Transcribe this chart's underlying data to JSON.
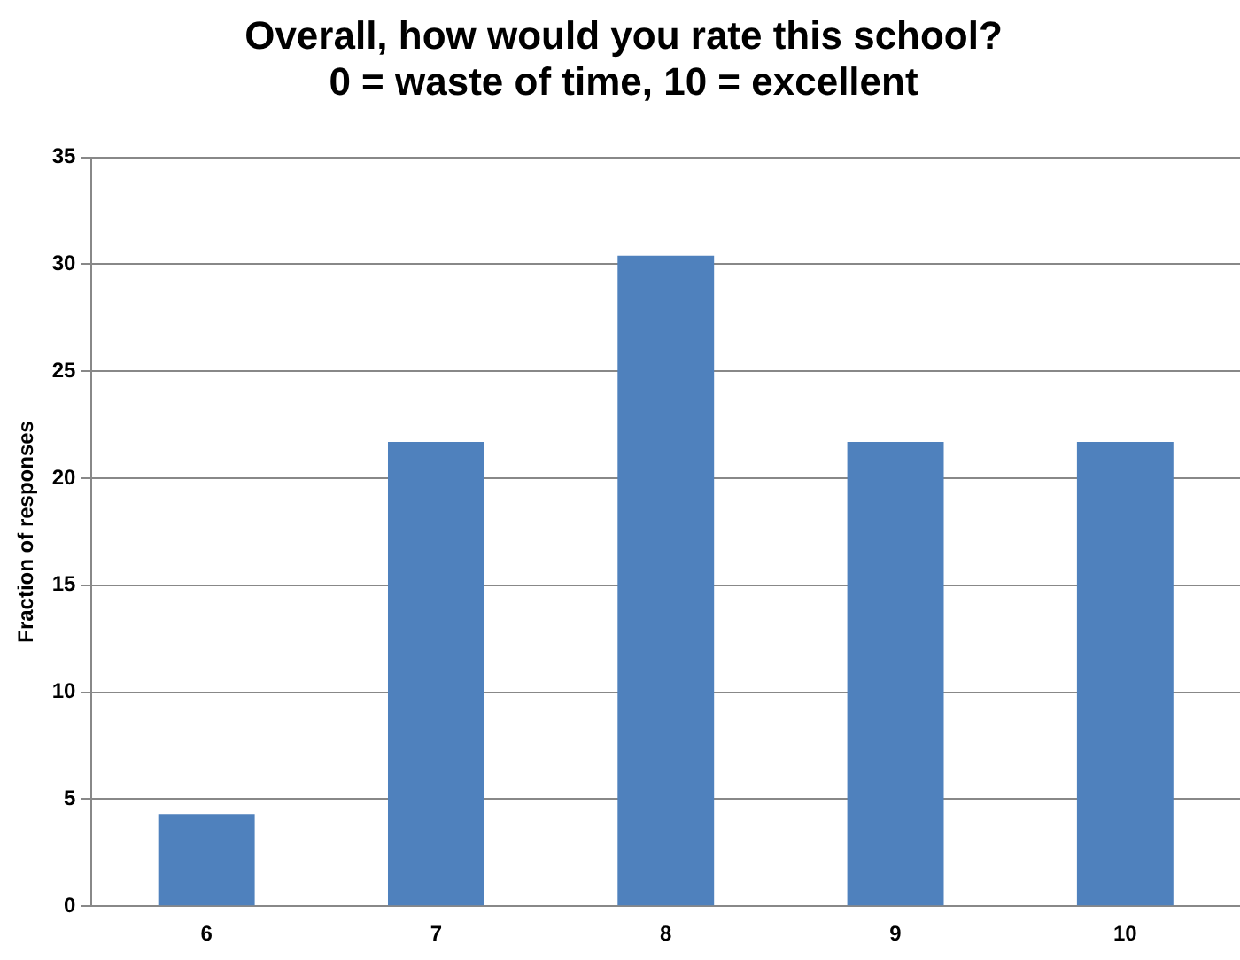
{
  "chart_data": {
    "type": "bar",
    "title": "Overall, how would you rate this school?\n0 = waste of time, 10 = excellent",
    "ylabel": "Fraction of responses",
    "categories": [
      "6",
      "7",
      "8",
      "9",
      "10"
    ],
    "values": [
      4.3,
      21.7,
      30.4,
      21.7,
      21.7
    ],
    "color": "#4f81bd",
    "ylim": [
      0,
      35
    ],
    "yticks": [
      0,
      5,
      10,
      15,
      20,
      25,
      30,
      35
    ],
    "grid": "y",
    "legend": false
  }
}
